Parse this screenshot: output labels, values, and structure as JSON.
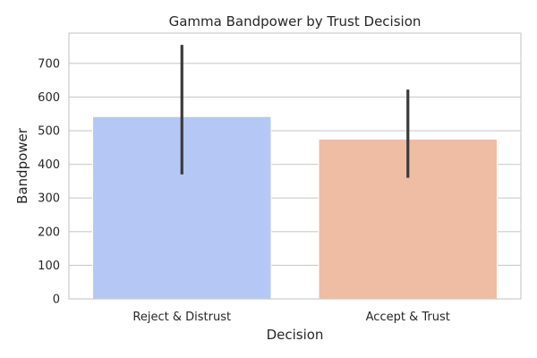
{
  "chart_data": {
    "type": "bar",
    "title": "Gamma Bandpower by Trust Decision",
    "xlabel": "Decision",
    "ylabel": "Bandpower",
    "categories": [
      "Reject & Distrust",
      "Accept & Trust"
    ],
    "values": [
      542,
      475
    ],
    "error_bars": [
      {
        "low": 370,
        "high": 755
      },
      {
        "low": 360,
        "high": 622
      }
    ],
    "colors": [
      "#b5c8f5",
      "#efbda4"
    ],
    "ylim": [
      0,
      790
    ],
    "yticks": [
      0,
      100,
      200,
      300,
      400,
      500,
      600,
      700
    ],
    "grid": "horizontal",
    "legend": "none"
  }
}
